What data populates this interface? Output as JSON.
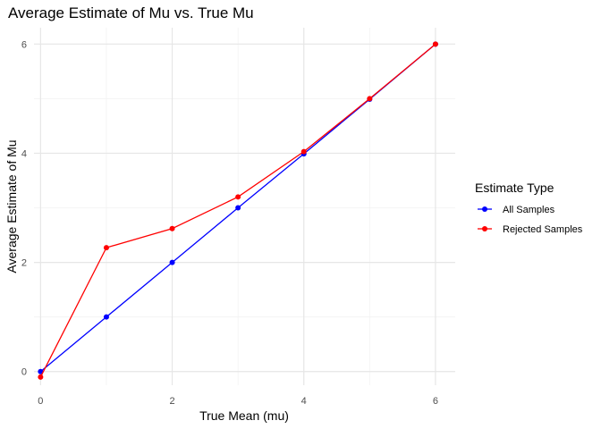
{
  "chart_data": {
    "type": "line",
    "title": "Average Estimate of Mu vs. True Mu",
    "xlabel": "True Mean (mu)",
    "ylabel": "Average Estimate of Mu",
    "xlim": [
      -0.1,
      6.3
    ],
    "ylim": [
      -0.25,
      6.3
    ],
    "xticks": [
      0,
      2,
      4,
      6
    ],
    "yticks": [
      0,
      2,
      4,
      6
    ],
    "x_minor": [
      1,
      3,
      5
    ],
    "y_minor": [
      1,
      3,
      5
    ],
    "grid": true,
    "legend": {
      "title": "Estimate Type",
      "position": "right"
    },
    "x": [
      0,
      1,
      2,
      3,
      4,
      5,
      6
    ],
    "series": [
      {
        "name": "All Samples",
        "color": "#0000FF",
        "values": [
          0.0,
          1.0,
          2.0,
          3.0,
          3.99,
          4.99,
          6.0
        ]
      },
      {
        "name": "Rejected Samples",
        "color": "#FF0000",
        "values": [
          -0.1,
          2.27,
          2.62,
          3.2,
          4.03,
          5.0,
          6.0
        ]
      }
    ]
  }
}
